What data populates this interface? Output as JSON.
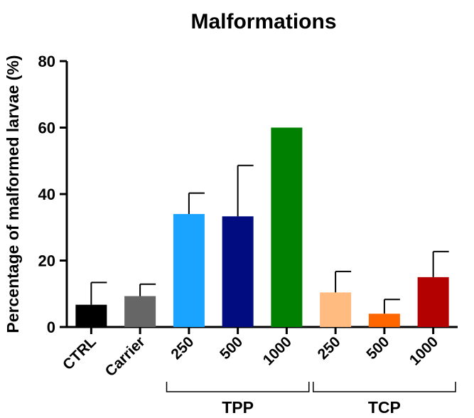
{
  "chart_data": {
    "type": "bar",
    "title": "Malformations",
    "xlabel": "",
    "ylabel": "Percentage of malformed larvae (%)",
    "ylim": [
      0,
      80
    ],
    "yticks": [
      0,
      20,
      40,
      60,
      80
    ],
    "grid": false,
    "categories": [
      "CTRL",
      "Carrier",
      "250",
      "500",
      "1000",
      "250",
      "500",
      "1000"
    ],
    "values": [
      6.7,
      9.3,
      34.0,
      33.3,
      60.0,
      10.4,
      4.0,
      15.0
    ],
    "errors": [
      6.7,
      3.6,
      6.3,
      15.3,
      0,
      6.3,
      4.3,
      7.7
    ],
    "colors": [
      "#000000",
      "#666666",
      "#1aa3ff",
      "#000c80",
      "#008000",
      "#ffbb80",
      "#ff6600",
      "#b30000"
    ],
    "groups": [
      {
        "label": "TPP",
        "start": 2,
        "end": 4
      },
      {
        "label": "TCP",
        "start": 5,
        "end": 7
      }
    ]
  }
}
